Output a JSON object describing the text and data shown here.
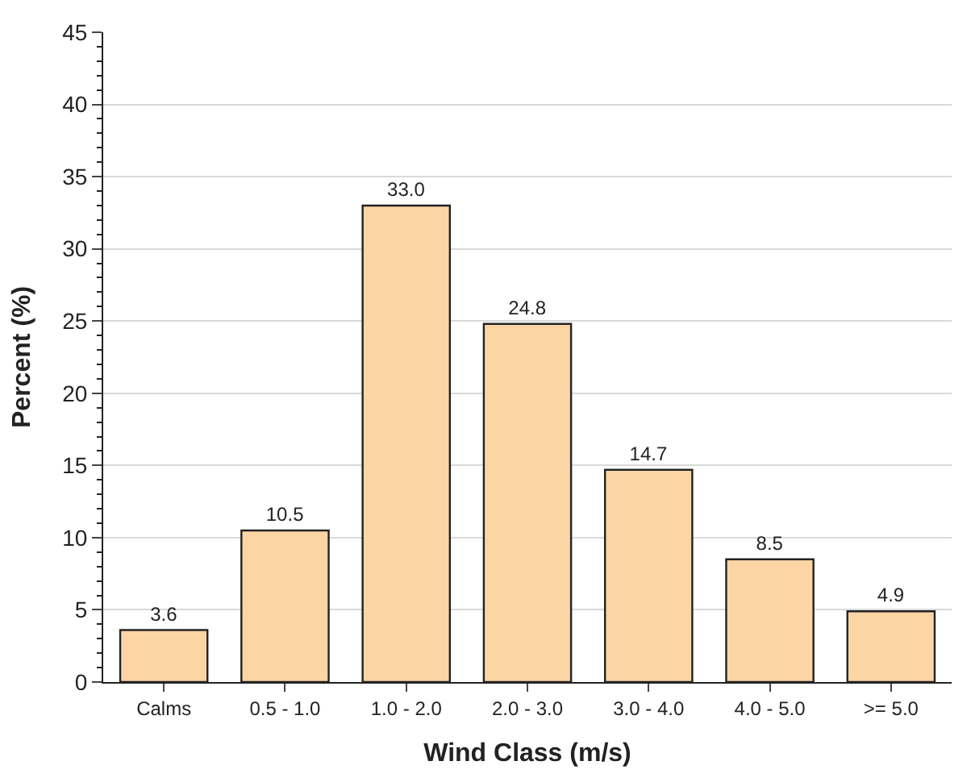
{
  "chart_data": {
    "type": "bar",
    "xlabel": "Wind Class (m/s)",
    "ylabel": "Percent (%)",
    "categories": [
      "Calms",
      "0.5 - 1.0",
      "1.0 - 2.0",
      "2.0 - 3.0",
      "3.0 - 4.0",
      "4.0 - 5.0",
      ">= 5.0"
    ],
    "values": [
      3.6,
      10.5,
      33.0,
      24.8,
      14.7,
      8.5,
      4.9
    ],
    "value_labels": [
      "3.6",
      "10.5",
      "33.0",
      "24.8",
      "14.7",
      "8.5",
      "4.9"
    ],
    "color": "#fcd5a5",
    "ylim": [
      0,
      45
    ],
    "yticks": [
      0,
      5,
      10,
      15,
      20,
      25,
      30,
      35,
      40,
      45
    ],
    "grid": "y"
  }
}
